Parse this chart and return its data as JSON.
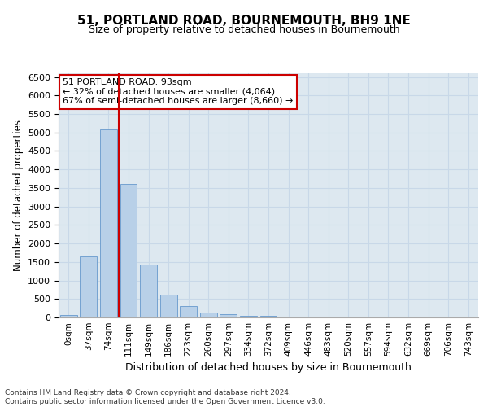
{
  "title_line1": "51, PORTLAND ROAD, BOURNEMOUTH, BH9 1NE",
  "title_line2": "Size of property relative to detached houses in Bournemouth",
  "xlabel": "Distribution of detached houses by size in Bournemouth",
  "ylabel": "Number of detached properties",
  "categories": [
    "0sqm",
    "37sqm",
    "74sqm",
    "111sqm",
    "149sqm",
    "186sqm",
    "223sqm",
    "260sqm",
    "297sqm",
    "334sqm",
    "372sqm",
    "409sqm",
    "446sqm",
    "483sqm",
    "520sqm",
    "557sqm",
    "594sqm",
    "632sqm",
    "669sqm",
    "706sqm",
    "743sqm"
  ],
  "bar_values": [
    60,
    1650,
    5080,
    3600,
    1420,
    620,
    300,
    140,
    80,
    50,
    40,
    0,
    0,
    0,
    0,
    0,
    0,
    0,
    0,
    0,
    0
  ],
  "bar_color": "#b8d0e8",
  "bar_edge_color": "#6699cc",
  "vline_color": "#cc0000",
  "annotation_title": "51 PORTLAND ROAD: 93sqm",
  "annotation_line2": "← 32% of detached houses are smaller (4,064)",
  "annotation_line3": "67% of semi-detached houses are larger (8,660) →",
  "annotation_box_color": "#cc0000",
  "annotation_fill": "#ffffff",
  "ylim": [
    0,
    6600
  ],
  "yticks": [
    0,
    500,
    1000,
    1500,
    2000,
    2500,
    3000,
    3500,
    4000,
    4500,
    5000,
    5500,
    6000,
    6500
  ],
  "grid_color": "#c8d8e8",
  "background_color": "#dde8f0",
  "footer_line1": "Contains HM Land Registry data © Crown copyright and database right 2024.",
  "footer_line2": "Contains public sector information licensed under the Open Government Licence v3.0."
}
